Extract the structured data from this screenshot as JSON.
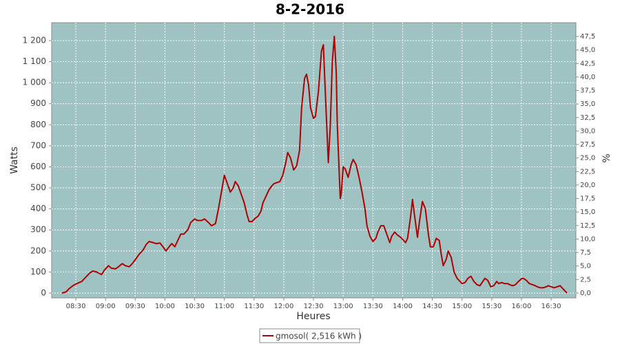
{
  "chart_data": {
    "type": "line",
    "title": "8-2-2016",
    "x_label": "Heures",
    "y_label": "Watts",
    "y2_label": "%",
    "x": [
      496,
      500,
      503,
      507,
      511,
      516,
      520,
      524,
      527,
      531,
      536,
      539,
      543,
      546,
      550,
      553,
      557,
      560,
      564,
      567,
      571,
      574,
      578,
      581,
      584,
      588,
      591,
      595,
      598,
      601,
      605,
      607,
      610,
      613,
      616,
      619,
      623,
      626,
      630,
      633,
      637,
      640,
      644,
      647,
      651,
      654,
      657,
      660,
      663,
      666,
      669,
      671,
      674,
      677,
      680,
      683,
      685,
      688,
      691,
      694,
      697,
      699,
      702,
      705,
      708,
      710,
      713,
      716,
      719,
      722,
      724,
      727,
      730,
      733,
      736,
      738,
      741,
      743,
      745,
      747,
      750,
      752,
      755,
      758,
      760,
      762,
      765,
      767,
      769,
      771,
      773,
      774,
      777,
      778,
      780,
      782,
      785,
      788,
      790,
      793,
      796,
      799,
      802,
      804,
      807,
      810,
      813,
      815,
      818,
      821,
      824,
      827,
      829,
      832,
      835,
      838,
      841,
      843,
      845,
      848,
      850,
      852,
      855,
      857,
      860,
      863,
      866,
      868,
      871,
      874,
      877,
      879,
      881,
      884,
      886,
      889,
      892,
      895,
      898,
      900,
      903,
      906,
      909,
      912,
      915,
      918,
      921,
      923,
      926,
      929,
      932,
      935,
      937,
      940,
      943,
      946,
      948,
      951,
      954,
      957,
      960,
      962,
      965,
      968,
      971,
      974,
      976,
      979,
      982,
      985,
      987,
      990,
      993,
      996,
      999,
      1001,
      1004,
      1006
    ],
    "series": [
      {
        "name": "gmosol( 2,516 kWh )",
        "color": "#b00000",
        "values": [
          0,
          5,
          20,
          35,
          45,
          55,
          75,
          95,
          105,
          100,
          88,
          110,
          130,
          118,
          115,
          125,
          140,
          130,
          125,
          140,
          165,
          185,
          205,
          230,
          245,
          240,
          235,
          238,
          220,
          200,
          225,
          235,
          220,
          250,
          280,
          280,
          300,
          335,
          352,
          345,
          345,
          352,
          335,
          320,
          330,
          400,
          480,
          560,
          520,
          480,
          500,
          530,
          510,
          470,
          430,
          370,
          340,
          340,
          355,
          365,
          390,
          430,
          460,
          490,
          510,
          520,
          525,
          530,
          560,
          620,
          668,
          640,
          585,
          605,
          680,
          880,
          1020,
          1040,
          990,
          880,
          830,
          840,
          960,
          1150,
          1180,
          950,
          620,
          800,
          1100,
          1220,
          1050,
          800,
          450,
          470,
          600,
          590,
          550,
          610,
          635,
          610,
          550,
          480,
          400,
          320,
          270,
          245,
          260,
          290,
          320,
          320,
          280,
          240,
          270,
          290,
          275,
          265,
          250,
          240,
          260,
          360,
          445,
          370,
          265,
          340,
          435,
          400,
          280,
          220,
          220,
          260,
          250,
          185,
          130,
          160,
          200,
          170,
          100,
          70,
          55,
          45,
          50,
          70,
          80,
          55,
          40,
          35,
          55,
          70,
          60,
          30,
          35,
          55,
          45,
          50,
          45,
          45,
          40,
          35,
          40,
          55,
          68,
          70,
          60,
          45,
          40,
          35,
          30,
          25,
          25,
          30,
          35,
          30,
          25,
          30,
          35,
          25,
          10,
          0
        ]
      }
    ],
    "xlim": [
      485.6,
      1015
    ],
    "xticks": [
      {
        "value": 510,
        "label": "08:30"
      },
      {
        "value": 540,
        "label": "09:00"
      },
      {
        "value": 570,
        "label": "09:30"
      },
      {
        "value": 600,
        "label": "10:00"
      },
      {
        "value": 630,
        "label": "10:30"
      },
      {
        "value": 660,
        "label": "11:00"
      },
      {
        "value": 690,
        "label": "11:30"
      },
      {
        "value": 720,
        "label": "12:00"
      },
      {
        "value": 750,
        "label": "12:30"
      },
      {
        "value": 780,
        "label": "13:00"
      },
      {
        "value": 810,
        "label": "13:30"
      },
      {
        "value": 840,
        "label": "14:00"
      },
      {
        "value": 870,
        "label": "14:30"
      },
      {
        "value": 900,
        "label": "15:00"
      },
      {
        "value": 930,
        "label": "15:30"
      },
      {
        "value": 960,
        "label": "16:00"
      },
      {
        "value": 990,
        "label": "16:30"
      }
    ],
    "ylim": [
      -23,
      1285
    ],
    "yticks": [
      0,
      100,
      200,
      300,
      400,
      500,
      600,
      700,
      800,
      900,
      {
        "value": 1000,
        "label": "1 000"
      },
      {
        "value": 1100,
        "label": "1 100"
      },
      {
        "value": 1200,
        "label": "1 200"
      }
    ],
    "y2lim": [
      -0.9,
      50.05
    ],
    "y2ticks": [
      {
        "value": 0,
        "label": "0,0"
      },
      {
        "value": 2.5,
        "label": "2,5"
      },
      {
        "value": 5,
        "label": "5,0"
      },
      {
        "value": 7.5,
        "label": "7,5"
      },
      {
        "value": 10,
        "label": "10,0"
      },
      {
        "value": 12.5,
        "label": "12,5"
      },
      {
        "value": 15,
        "label": "15,0"
      },
      {
        "value": 17.5,
        "label": "17,5"
      },
      {
        "value": 20,
        "label": "20,0"
      },
      {
        "value": 22.5,
        "label": "22,5"
      },
      {
        "value": 25,
        "label": "25,0"
      },
      {
        "value": 27.5,
        "label": "27,5"
      },
      {
        "value": 30,
        "label": "30,0"
      },
      {
        "value": 32.5,
        "label": "32,5"
      },
      {
        "value": 35,
        "label": "35,0"
      },
      {
        "value": 37.5,
        "label": "37,5"
      },
      {
        "value": 40,
        "label": "40,0"
      },
      {
        "value": 42.5,
        "label": "42,5"
      },
      {
        "value": 45,
        "label": "45,0"
      },
      {
        "value": 47.5,
        "label": "47,5"
      }
    ],
    "grid": true
  }
}
